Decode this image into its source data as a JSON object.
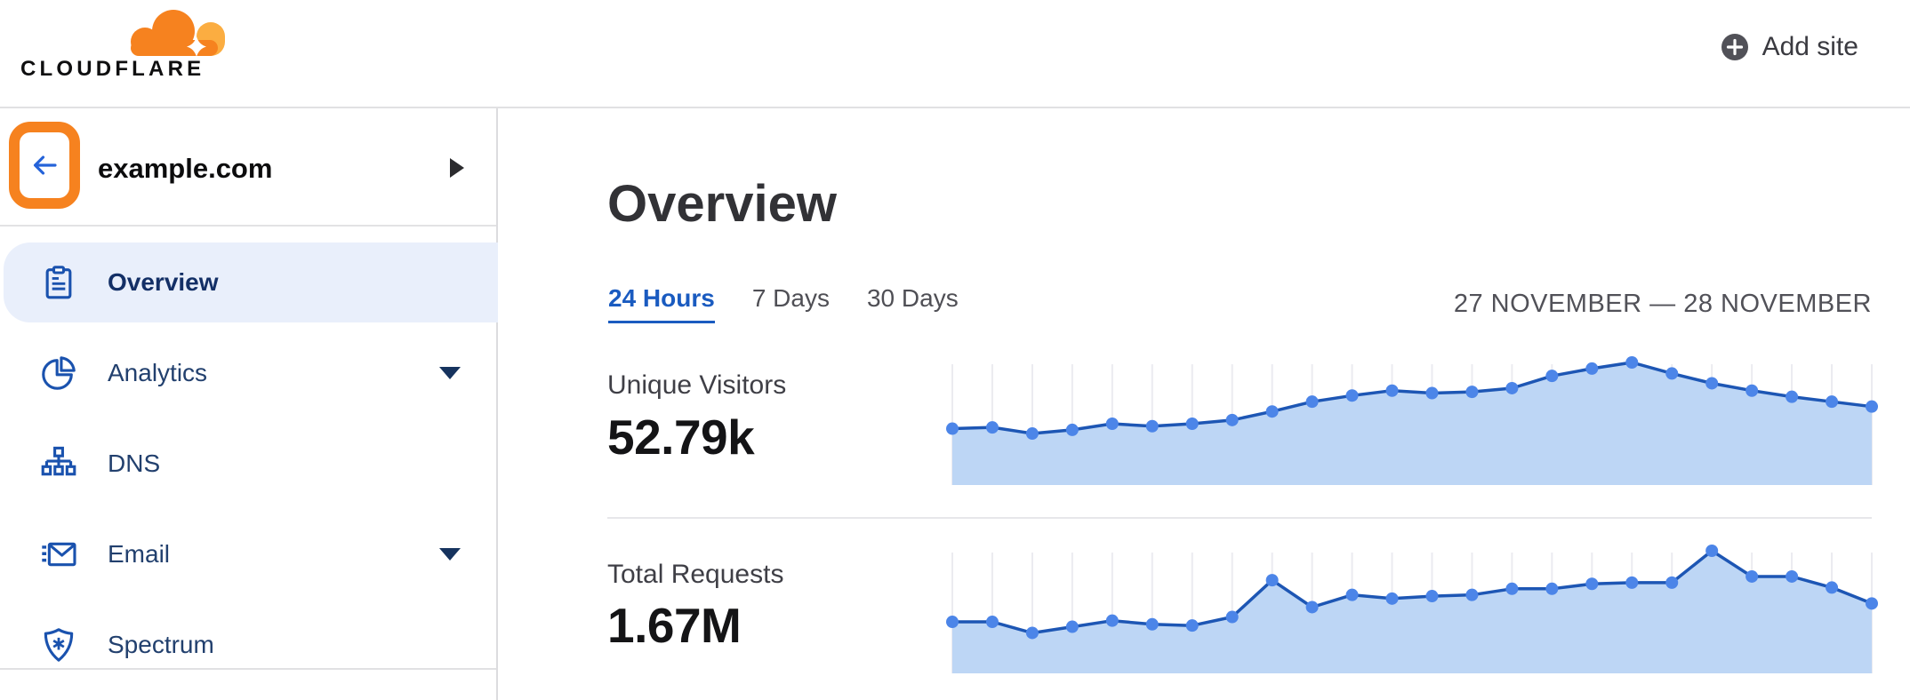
{
  "header": {
    "logo_text": "CLOUDFLARE",
    "add_site_label": "Add site"
  },
  "sidebar": {
    "site_name": "example.com",
    "items": [
      {
        "label": "Overview",
        "icon": "clipboard-icon",
        "selected": true,
        "expandable": false
      },
      {
        "label": "Analytics",
        "icon": "pie-chart-icon",
        "selected": false,
        "expandable": true
      },
      {
        "label": "DNS",
        "icon": "dns-tree-icon",
        "selected": false,
        "expandable": false
      },
      {
        "label": "Email",
        "icon": "email-icon",
        "selected": false,
        "expandable": true
      },
      {
        "label": "Spectrum",
        "icon": "shield-icon",
        "selected": false,
        "expandable": false
      }
    ]
  },
  "main": {
    "title": "Overview",
    "tabs": [
      {
        "label": "24 Hours",
        "active": true
      },
      {
        "label": "7 Days",
        "active": false
      },
      {
        "label": "30 Days",
        "active": false
      }
    ],
    "date_range": "27 NOVEMBER — 28 NOVEMBER",
    "metrics": [
      {
        "label": "Unique Visitors",
        "value": "52.79k"
      },
      {
        "label": "Total Requests",
        "value": "1.67M"
      }
    ]
  },
  "colors": {
    "brand_orange": "#f6821f",
    "logo_orange_light": "#fbad41",
    "highlight_box_orange": "#f6821f",
    "active_link_blue": "#1a5bc0",
    "nav_icon_blue": "#1a52ae",
    "nav_text_navy": "#22406e",
    "selected_item_bg": "#e9effb",
    "chart_line": "#1d56b4",
    "chart_fill": "#bdd6f5",
    "chart_dot": "#4c85e8",
    "chart_grid": "#ebebf0",
    "back_arrow_blue": "#2563d9"
  },
  "chart_data": [
    {
      "type": "area",
      "title": "Unique Visitors",
      "current_value": "52.79k",
      "period": "24 Hours",
      "x_description": "24 evenly spaced time samples, 27 November — 28 November",
      "ylabel": "",
      "ylim": [
        0,
        100
      ],
      "grid": "vertical",
      "legend": "none",
      "values_relative_pct": [
        46,
        47,
        42,
        45,
        50,
        48,
        50,
        53,
        60,
        68,
        73,
        77,
        75,
        76,
        79,
        89,
        95,
        100,
        91,
        83,
        77,
        72,
        68,
        64
      ]
    },
    {
      "type": "area",
      "title": "Total Requests",
      "current_value": "1.67M",
      "period": "24 Hours",
      "x_description": "24 evenly spaced time samples, 27 November — 28 November",
      "ylabel": "",
      "ylim": [
        0,
        100
      ],
      "grid": "vertical",
      "legend": "none",
      "values_relative_pct": [
        42,
        42,
        33,
        38,
        43,
        40,
        39,
        46,
        76,
        54,
        64,
        61,
        63,
        64,
        69,
        69,
        73,
        74,
        74,
        100,
        79,
        79,
        70,
        57
      ]
    }
  ]
}
